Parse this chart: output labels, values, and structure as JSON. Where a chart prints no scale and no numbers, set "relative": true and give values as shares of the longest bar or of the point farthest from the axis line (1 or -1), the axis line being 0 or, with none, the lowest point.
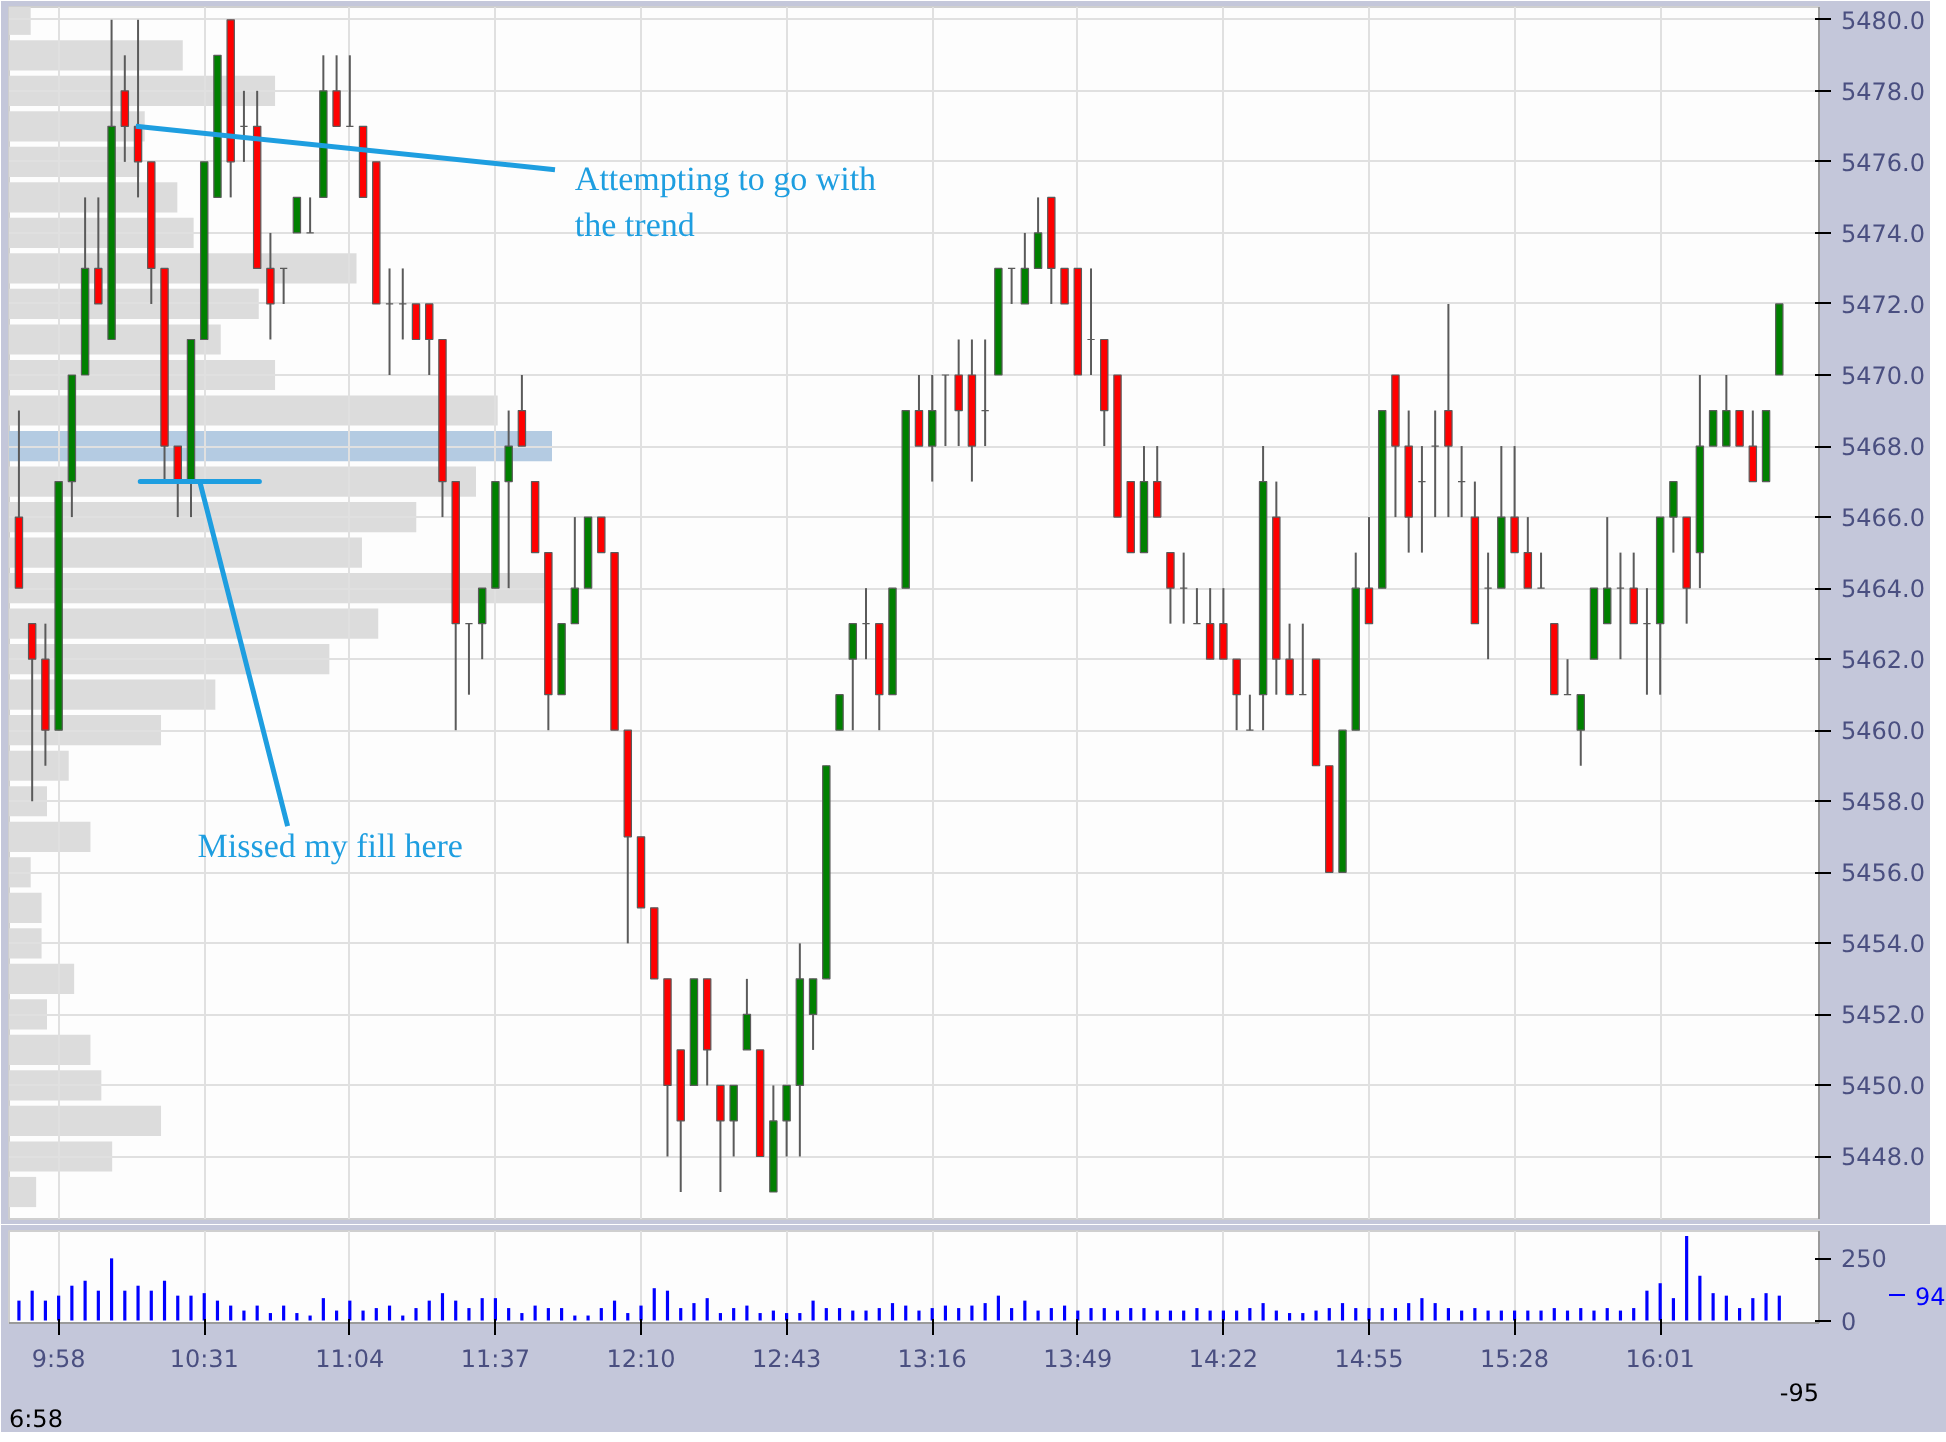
{
  "chart_data": [
    {
      "type": "candlestick",
      "tick_labels": "y",
      "grid": true,
      "colors": [
        "#ff0000",
        "#ff0000",
        "#ff0000",
        "#008000",
        "#008000",
        "#008000",
        "#ff0000",
        "#008000",
        "#ff0000",
        "#ff0000",
        "#ff0000",
        "#ff0000",
        "#ff0000",
        "#008000",
        "#008000",
        "#008000",
        "#ff0000",
        "#5a5a5a",
        "#ff0000",
        "#ff0000",
        "#5a5a5a",
        "#008000",
        "#5a5a5a",
        "#008000",
        "#ff0000",
        "#5a5a5a",
        "#ff0000",
        "#ff0000",
        "#5a5a5a",
        "#5a5a5a",
        "#ff0000",
        "#ff0000",
        "#ff0000",
        "#ff0000",
        "#5a5a5a",
        "#008000",
        "#008000",
        "#008000",
        "#ff0000",
        "#ff0000",
        "#ff0000",
        "#008000",
        "#008000",
        "#008000",
        "#ff0000",
        "#ff0000",
        "#ff0000",
        "#ff0000",
        "#ff0000",
        "#ff0000",
        "#ff0000",
        "#008000",
        "#ff0000",
        "#ff0000",
        "#008000",
        "#008000",
        "#ff0000",
        "#008000",
        "#008000",
        "#008000",
        "#008000",
        "#008000",
        "#008000",
        "#008000",
        "#5a5a5a",
        "#ff0000",
        "#008000",
        "#008000",
        "#ff0000",
        "#008000",
        "#5a5a5a",
        "#ff0000",
        "#ff0000",
        "#5a5a5a",
        "#008000",
        "#5a5a5a",
        "#008000",
        "#008000",
        "#ff0000",
        "#ff0000",
        "#ff0000",
        "#5a5a5a",
        "#ff0000",
        "#ff0000",
        "#ff0000",
        "#008000",
        "#ff0000",
        "#ff0000",
        "#5a5a5a",
        "#5a5a5a",
        "#ff0000",
        "#ff0000",
        "#ff0000",
        "#5a5a5a",
        "#008000",
        "#ff0000",
        "#ff0000",
        "#5a5a5a",
        "#ff0000",
        "#ff0000",
        "#008000",
        "#008000",
        "#ff0000",
        "#008000",
        "#ff0000",
        "#ff0000",
        "#5a5a5a",
        "#5a5a5a",
        "#ff0000",
        "#5a5a5a",
        "#ff0000",
        "#5a5a5a",
        "#008000",
        "#ff0000",
        "#ff0000",
        "#5a5a5a",
        "#ff0000",
        "#5a5a5a",
        "#008000",
        "#008000",
        "#008000",
        "#5a5a5a",
        "#ff0000",
        "#5a5a5a",
        "#008000",
        "#008000",
        "#ff0000",
        "#008000",
        "#008000",
        "#008000",
        "#ff0000",
        "#ff0000",
        "#008000",
        "#008000"
      ],
      "xlim": [
        9.7792,
        16.6167
      ],
      "ylim": [
        5446.24,
        5480.36
      ],
      "xticks": [
        {
          "value": 9.9667,
          "label": null
        },
        {
          "value": 10.5167,
          "label": null
        },
        {
          "value": 11.0667,
          "label": null
        },
        {
          "value": 11.6167,
          "label": null
        },
        {
          "value": 12.1667,
          "label": null
        },
        {
          "value": 12.7167,
          "label": null
        },
        {
          "value": 13.2667,
          "label": null
        },
        {
          "value": 13.8167,
          "label": null
        },
        {
          "value": 14.3667,
          "label": null
        },
        {
          "value": 14.9167,
          "label": null
        },
        {
          "value": 15.4667,
          "label": null
        },
        {
          "value": 16.0167,
          "label": null
        }
      ],
      "yticks": [
        {
          "value": 5448,
          "label": "5448.0"
        },
        {
          "value": 5450,
          "label": "5450.0"
        },
        {
          "value": 5452,
          "label": "5452.0"
        },
        {
          "value": 5454,
          "label": "5454.0"
        },
        {
          "value": 5456,
          "label": "5456.0"
        },
        {
          "value": 5458,
          "label": "5458.0"
        },
        {
          "value": 5460,
          "label": "5460.0"
        },
        {
          "value": 5462,
          "label": "5462.0"
        },
        {
          "value": 5464,
          "label": "5464.0"
        },
        {
          "value": 5466,
          "label": "5466.0"
        },
        {
          "value": 5468,
          "label": "5468.0"
        },
        {
          "value": 5470,
          "label": "5470.0"
        },
        {
          "value": 5472,
          "label": "5472.0"
        },
        {
          "value": 5474,
          "label": "5474.0"
        },
        {
          "value": 5476,
          "label": "5476.0"
        },
        {
          "value": 5478,
          "label": "5478.0"
        },
        {
          "value": 5480,
          "label": "5480.0"
        }
      ],
      "annotations": [
        {
          "text": "Attempting to go with the trend",
          "x": 10.2583,
          "y": 5477
        },
        {
          "text": "Missed my fill here",
          "x": 10.5,
          "y": 5467
        }
      ],
      "x": [
        9.8167,
        9.8667,
        9.9167,
        9.9667,
        10.0167,
        10.0667,
        10.1167,
        10.1667,
        10.2167,
        10.2667,
        10.3167,
        10.3667,
        10.4167,
        10.4667,
        10.5167,
        10.5667,
        10.6167,
        10.6667,
        10.7167,
        10.7667,
        10.8167,
        10.8667,
        10.9167,
        10.9667,
        11.0167,
        11.0667,
        11.1167,
        11.1667,
        11.2167,
        11.2667,
        11.3167,
        11.3667,
        11.4167,
        11.4667,
        11.5167,
        11.5667,
        11.6167,
        11.6667,
        11.7167,
        11.7667,
        11.8167,
        11.8667,
        11.9167,
        11.9667,
        12.0167,
        12.0667,
        12.1167,
        12.1667,
        12.2167,
        12.2667,
        12.3167,
        12.3667,
        12.4167,
        12.4667,
        12.5167,
        12.5667,
        12.6167,
        12.6667,
        12.7167,
        12.7667,
        12.8167,
        12.8667,
        12.9167,
        12.9667,
        13.0167,
        13.0667,
        13.1167,
        13.1667,
        13.2167,
        13.2667,
        13.3167,
        13.3667,
        13.4167,
        13.4667,
        13.5167,
        13.5667,
        13.6167,
        13.6667,
        13.7167,
        13.7667,
        13.8167,
        13.8667,
        13.9167,
        13.9667,
        14.0167,
        14.0667,
        14.1167,
        14.1667,
        14.2167,
        14.2667,
        14.3167,
        14.3667,
        14.4167,
        14.4667,
        14.5167,
        14.5667,
        14.6167,
        14.6667,
        14.7167,
        14.7667,
        14.8167,
        14.8667,
        14.9167,
        14.9667,
        15.0167,
        15.0667,
        15.1167,
        15.1667,
        15.2167,
        15.2667,
        15.3167,
        15.3667,
        15.4167,
        15.4667,
        15.5167,
        15.5667,
        15.6167,
        15.6667,
        15.7167,
        15.7667,
        15.8167,
        15.8667,
        15.9167,
        15.9667,
        16.0167,
        16.0667,
        16.1167,
        16.1667,
        16.2167,
        16.2667,
        16.3167,
        16.3667,
        16.4167,
        16.4667
      ],
      "ohlc": [
        [
          5466,
          5469,
          5464,
          5464
        ],
        [
          5463,
          5463,
          5458,
          5462
        ],
        [
          5462,
          5463,
          5459,
          5460
        ],
        [
          5460,
          5467,
          5460,
          5467
        ],
        [
          5467,
          5470,
          5466,
          5470
        ],
        [
          5470,
          5475,
          5470,
          5473
        ],
        [
          5473,
          5475,
          5472,
          5472
        ],
        [
          5471,
          5480,
          5471,
          5477
        ],
        [
          5478,
          5479,
          5476,
          5477
        ],
        [
          5477,
          5480,
          5475,
          5476
        ],
        [
          5476,
          5476,
          5472,
          5473
        ],
        [
          5473,
          5473,
          5467,
          5468
        ],
        [
          5468,
          5468,
          5466,
          5467
        ],
        [
          5467,
          5471,
          5466,
          5471
        ],
        [
          5471,
          5476,
          5471,
          5476
        ],
        [
          5475,
          5479,
          5475,
          5479
        ],
        [
          5480,
          5480,
          5475,
          5476
        ],
        [
          5477,
          5478,
          5476,
          5477
        ],
        [
          5477,
          5478,
          5473,
          5473
        ],
        [
          5473,
          5474,
          5471,
          5472
        ],
        [
          5473,
          5473,
          5472,
          5473
        ],
        [
          5474,
          5475,
          5474,
          5475
        ],
        [
          5474,
          5475,
          5474,
          5474
        ],
        [
          5475,
          5479,
          5475,
          5478
        ],
        [
          5478,
          5479,
          5477,
          5477
        ],
        [
          5477,
          5479,
          5477,
          5477
        ],
        [
          5477,
          5477,
          5475,
          5475
        ],
        [
          5476,
          5476,
          5472,
          5472
        ],
        [
          5472,
          5473,
          5470,
          5472
        ],
        [
          5472,
          5473,
          5471,
          5472
        ],
        [
          5472,
          5472,
          5471,
          5471
        ],
        [
          5472,
          5472,
          5470,
          5471
        ],
        [
          5471,
          5471,
          5466,
          5467
        ],
        [
          5467,
          5467,
          5460,
          5463
        ],
        [
          5463,
          5463,
          5461,
          5463
        ],
        [
          5463,
          5464,
          5462,
          5464
        ],
        [
          5464,
          5467,
          5464,
          5467
        ],
        [
          5467,
          5469,
          5464,
          5468
        ],
        [
          5469,
          5470,
          5468,
          5468
        ],
        [
          5467,
          5467,
          5465,
          5465
        ],
        [
          5465,
          5465,
          5460,
          5461
        ],
        [
          5461,
          5463,
          5461,
          5463
        ],
        [
          5463,
          5466,
          5463,
          5464
        ],
        [
          5464,
          5466,
          5464,
          5466
        ],
        [
          5466,
          5466,
          5465,
          5465
        ],
        [
          5465,
          5465,
          5460,
          5460
        ],
        [
          5460,
          5460,
          5454,
          5457
        ],
        [
          5457,
          5457,
          5455,
          5455
        ],
        [
          5455,
          5455,
          5453,
          5453
        ],
        [
          5453,
          5453,
          5448,
          5450
        ],
        [
          5451,
          5451,
          5447,
          5449
        ],
        [
          5450,
          5453,
          5450,
          5453
        ],
        [
          5453,
          5453,
          5450,
          5451
        ],
        [
          5450,
          5450,
          5447,
          5449
        ],
        [
          5449,
          5450,
          5448,
          5450
        ],
        [
          5451,
          5453,
          5451,
          5452
        ],
        [
          5451,
          5451,
          5448,
          5448
        ],
        [
          5447,
          5450,
          5447,
          5449
        ],
        [
          5449,
          5450,
          5448,
          5450
        ],
        [
          5450,
          5454,
          5448,
          5453
        ],
        [
          5452,
          5453,
          5451,
          5453
        ],
        [
          5453,
          5459,
          5453,
          5459
        ],
        [
          5460,
          5461,
          5460,
          5461
        ],
        [
          5462,
          5463,
          5460,
          5463
        ],
        [
          5463,
          5464,
          5462,
          5463
        ],
        [
          5463,
          5463,
          5460,
          5461
        ],
        [
          5461,
          5464,
          5461,
          5464
        ],
        [
          5464,
          5469,
          5464,
          5469
        ],
        [
          5469,
          5470,
          5468,
          5468
        ],
        [
          5468,
          5470,
          5467,
          5469
        ],
        [
          5470,
          5470,
          5468,
          5470
        ],
        [
          5470,
          5471,
          5468,
          5469
        ],
        [
          5470,
          5471,
          5467,
          5468
        ],
        [
          5469,
          5471,
          5468,
          5469
        ],
        [
          5470,
          5473,
          5470,
          5473
        ],
        [
          5473,
          5473,
          5472,
          5473
        ],
        [
          5472,
          5474,
          5472,
          5473
        ],
        [
          5473,
          5475,
          5473,
          5474
        ],
        [
          5475,
          5475,
          5472,
          5473
        ],
        [
          5473,
          5473,
          5472,
          5472
        ],
        [
          5473,
          5473,
          5470,
          5470
        ],
        [
          5471,
          5473,
          5470,
          5471
        ],
        [
          5471,
          5471,
          5468,
          5469
        ],
        [
          5470,
          5470,
          5466,
          5466
        ],
        [
          5467,
          5467,
          5465,
          5465
        ],
        [
          5465,
          5468,
          5465,
          5467
        ],
        [
          5467,
          5468,
          5466,
          5466
        ],
        [
          5465,
          5465,
          5463,
          5464
        ],
        [
          5464,
          5465,
          5463,
          5464
        ],
        [
          5463,
          5464,
          5463,
          5463
        ],
        [
          5463,
          5464,
          5462,
          5462
        ],
        [
          5463,
          5464,
          5462,
          5462
        ],
        [
          5462,
          5462,
          5460,
          5461
        ],
        [
          5460,
          5461,
          5460,
          5460
        ],
        [
          5461,
          5468,
          5460,
          5467
        ],
        [
          5466,
          5467,
          5461,
          5462
        ],
        [
          5462,
          5463,
          5461,
          5461
        ],
        [
          5461,
          5463,
          5461,
          5461
        ],
        [
          5462,
          5462,
          5459,
          5459
        ],
        [
          5459,
          5459,
          5456,
          5456
        ],
        [
          5456,
          5460,
          5456,
          5460
        ],
        [
          5460,
          5465,
          5460,
          5464
        ],
        [
          5464,
          5466,
          5463,
          5463
        ],
        [
          5464,
          5469,
          5464,
          5469
        ],
        [
          5470,
          5470,
          5466,
          5468
        ],
        [
          5468,
          5469,
          5465,
          5466
        ],
        [
          5467,
          5468,
          5465,
          5467
        ],
        [
          5468,
          5469,
          5466,
          5468
        ],
        [
          5469,
          5472,
          5466,
          5468
        ],
        [
          5467,
          5468,
          5466,
          5467
        ],
        [
          5466,
          5467,
          5463,
          5463
        ],
        [
          5464,
          5465,
          5462,
          5464
        ],
        [
          5464,
          5468,
          5464,
          5466
        ],
        [
          5466,
          5468,
          5465,
          5465
        ],
        [
          5465,
          5466,
          5464,
          5464
        ],
        [
          5464,
          5465,
          5464,
          5464
        ],
        [
          5463,
          5463,
          5461,
          5461
        ],
        [
          5461,
          5462,
          5461,
          5461
        ],
        [
          5460,
          5461,
          5459,
          5461
        ],
        [
          5462,
          5464,
          5462,
          5464
        ],
        [
          5463,
          5466,
          5463,
          5464
        ],
        [
          5464,
          5465,
          5462,
          5464
        ],
        [
          5464,
          5465,
          5463,
          5463
        ],
        [
          5463,
          5464,
          5461,
          5463
        ],
        [
          5463,
          5466,
          5461,
          5466
        ],
        [
          5466,
          5467,
          5465,
          5467
        ],
        [
          5466,
          5466,
          5463,
          5464
        ],
        [
          5465,
          5470,
          5464,
          5468
        ],
        [
          5468,
          5469,
          5468,
          5469
        ],
        [
          5468,
          5470,
          5468,
          5469
        ],
        [
          5469,
          5469,
          5468,
          5468
        ],
        [
          5468,
          5469,
          5467,
          5467
        ],
        [
          5467,
          5469,
          5467,
          5469
        ],
        [
          5470,
          5472,
          5470,
          5472
        ]
      ]
    },
    {
      "type": "bar",
      "orientation": "horizontal",
      "relative": true,
      "categories": [
        null,
        null,
        null,
        null,
        null,
        null,
        null,
        null,
        null,
        null,
        null,
        null,
        null,
        null,
        null,
        null,
        null,
        null,
        null,
        null,
        null,
        null,
        null,
        null,
        null,
        null,
        null,
        null,
        null,
        null,
        null,
        null,
        null,
        null
      ],
      "values": [
        0.04,
        0.32,
        0.49,
        0.25,
        0.24,
        0.31,
        0.34,
        0.64,
        0.46,
        0.39,
        0.49,
        0.9,
        1,
        0.86,
        0.75,
        0.65,
        0.99,
        0.68,
        0.59,
        0.38,
        0.28,
        0.11,
        0.07,
        0.15,
        0.04,
        0.06,
        0.06,
        0.12,
        0.07,
        0.15,
        0.17,
        0.28,
        0.19,
        0.05
      ],
      "colors": [
        "#dcdcdc",
        "#dcdcdc",
        "#dcdcdc",
        "#dcdcdc",
        "#dcdcdc",
        "#dcdcdc",
        "#dcdcdc",
        "#dcdcdc",
        "#dcdcdc",
        "#dcdcdc",
        "#dcdcdc",
        "#dcdcdc",
        "#b4cbe2",
        "#dcdcdc",
        "#dcdcdc",
        "#dcdcdc",
        "#dcdcdc",
        "#dcdcdc",
        "#dcdcdc",
        "#dcdcdc",
        "#dcdcdc",
        "#dcdcdc",
        "#dcdcdc",
        "#dcdcdc",
        "#dcdcdc",
        "#dcdcdc",
        "#dcdcdc",
        "#dcdcdc",
        "#dcdcdc",
        "#dcdcdc",
        "#dcdcdc",
        "#dcdcdc",
        "#dcdcdc",
        "#dcdcdc"
      ]
    },
    {
      "type": "bar",
      "color": "#0000ff",
      "grid": "x",
      "xlim": [
        9.7792,
        16.6167
      ],
      "ylim": [
        -10,
        360
      ],
      "xticks": [
        {
          "value": 9.9667,
          "label": "9:58"
        },
        {
          "value": 10.5167,
          "label": "10:31"
        },
        {
          "value": 11.0667,
          "label": "11:04"
        },
        {
          "value": 11.6167,
          "label": "11:37"
        },
        {
          "value": 12.1667,
          "label": "12:10"
        },
        {
          "value": 12.7167,
          "label": "12:43"
        },
        {
          "value": 13.2667,
          "label": "13:16"
        },
        {
          "value": 13.8167,
          "label": "13:49"
        },
        {
          "value": 14.3667,
          "label": "14:22"
        },
        {
          "value": 14.9167,
          "label": "14:55"
        },
        {
          "value": 15.4667,
          "label": "15:28"
        },
        {
          "value": 16.0167,
          "label": "16:01"
        }
      ],
      "yticks": [
        0,
        250
      ],
      "annotations": [
        "94",
        "-95",
        "6:58"
      ],
      "x": [
        9.8167,
        9.8667,
        9.9167,
        9.9667,
        10.0167,
        10.0667,
        10.1167,
        10.1667,
        10.2167,
        10.2667,
        10.3167,
        10.3667,
        10.4167,
        10.4667,
        10.5167,
        10.5667,
        10.6167,
        10.6667,
        10.7167,
        10.7667,
        10.8167,
        10.8667,
        10.9167,
        10.9667,
        11.0167,
        11.0667,
        11.1167,
        11.1667,
        11.2167,
        11.2667,
        11.3167,
        11.3667,
        11.4167,
        11.4667,
        11.5167,
        11.5667,
        11.6167,
        11.6667,
        11.7167,
        11.7667,
        11.8167,
        11.8667,
        11.9167,
        11.9667,
        12.0167,
        12.0667,
        12.1167,
        12.1667,
        12.2167,
        12.2667,
        12.3167,
        12.3667,
        12.4167,
        12.4667,
        12.5167,
        12.5667,
        12.6167,
        12.6667,
        12.7167,
        12.7667,
        12.8167,
        12.8667,
        12.9167,
        12.9667,
        13.0167,
        13.0667,
        13.1167,
        13.1667,
        13.2167,
        13.2667,
        13.3167,
        13.3667,
        13.4167,
        13.4667,
        13.5167,
        13.5667,
        13.6167,
        13.6667,
        13.7167,
        13.7667,
        13.8167,
        13.8667,
        13.9167,
        13.9667,
        14.0167,
        14.0667,
        14.1167,
        14.1667,
        14.2167,
        14.2667,
        14.3167,
        14.3667,
        14.4167,
        14.4667,
        14.5167,
        14.5667,
        14.6167,
        14.6667,
        14.7167,
        14.7667,
        14.8167,
        14.8667,
        14.9167,
        14.9667,
        15.0167,
        15.0667,
        15.1167,
        15.1667,
        15.2167,
        15.2667,
        15.3167,
        15.3667,
        15.4167,
        15.4667,
        15.5167,
        15.5667,
        15.6167,
        15.6667,
        15.7167,
        15.7667,
        15.8167,
        15.8667,
        15.9167,
        15.9667,
        16.0167,
        16.0667,
        16.1167,
        16.1667,
        16.2167,
        16.2667,
        16.3167,
        16.3667,
        16.4167,
        16.4667
      ],
      "values": [
        80,
        120,
        80,
        100,
        140,
        160,
        120,
        250,
        120,
        140,
        120,
        160,
        100,
        100,
        110,
        80,
        60,
        40,
        60,
        30,
        60,
        30,
        20,
        90,
        40,
        80,
        40,
        50,
        60,
        20,
        50,
        80,
        110,
        80,
        50,
        90,
        90,
        50,
        30,
        60,
        50,
        50,
        20,
        20,
        50,
        80,
        30,
        60,
        130,
        120,
        50,
        70,
        90,
        30,
        50,
        60,
        30,
        40,
        30,
        30,
        80,
        50,
        50,
        40,
        40,
        50,
        70,
        60,
        40,
        50,
        60,
        50,
        60,
        70,
        100,
        50,
        80,
        40,
        50,
        60,
        40,
        50,
        50,
        40,
        50,
        50,
        40,
        40,
        40,
        50,
        40,
        40,
        40,
        50,
        70,
        40,
        30,
        30,
        40,
        50,
        70,
        50,
        50,
        50,
        50,
        70,
        90,
        70,
        50,
        40,
        50,
        40,
        40,
        40,
        40,
        40,
        50,
        40,
        50,
        40,
        50,
        40,
        50,
        120,
        150,
        90,
        340,
        180,
        110,
        100,
        50,
        90,
        110,
        100
      ]
    }
  ]
}
